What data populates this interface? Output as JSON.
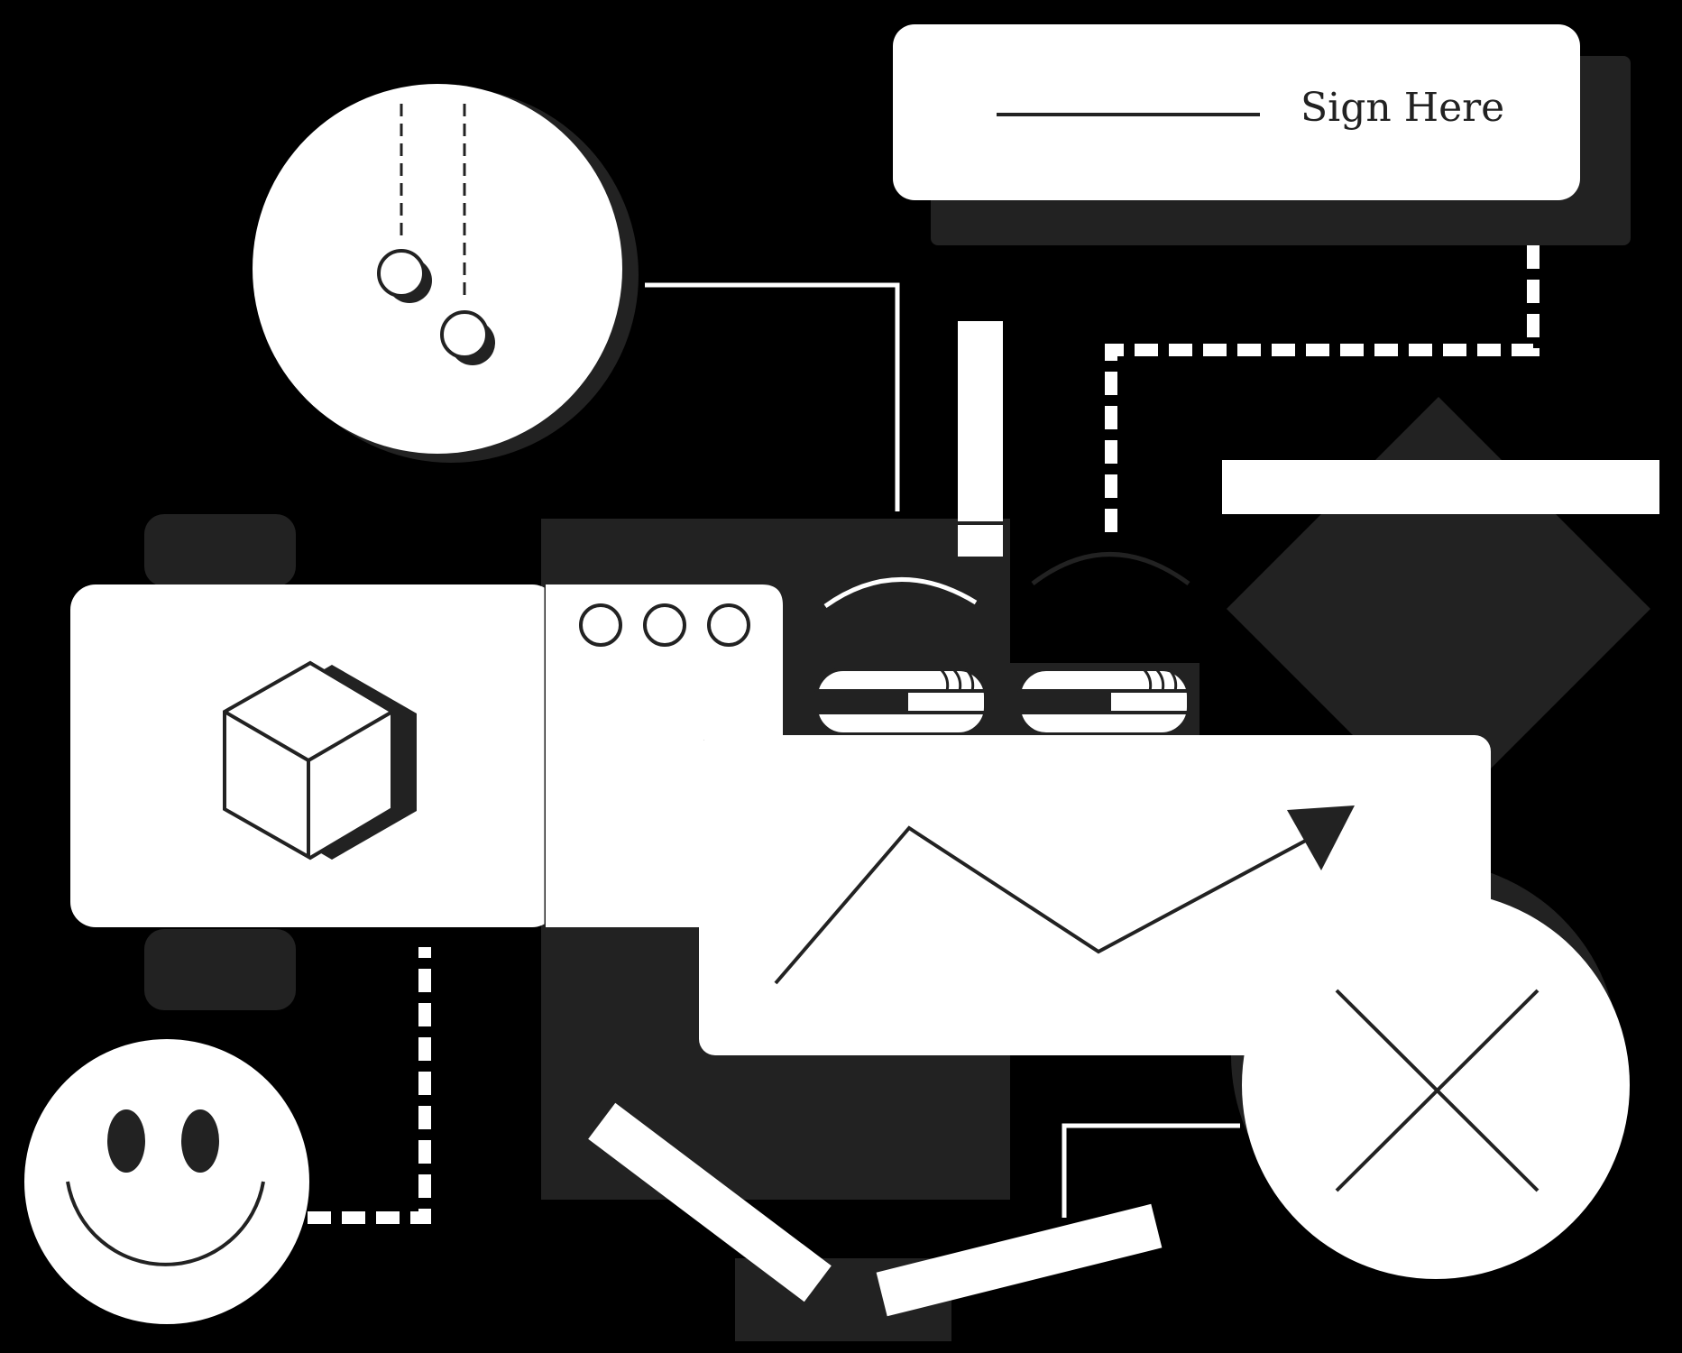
{
  "signature_card": {
    "label": "Sign Here"
  },
  "icons": {
    "cube": "cube-icon",
    "window_dots": "three-dots-icon",
    "line_chart": "trend-up-arrow-icon",
    "close": "close-x-icon",
    "smiley": "smiley-face-icon",
    "hanging_balls": "pendulum-icon",
    "toggles": "toggle-switch-icon"
  },
  "colors": {
    "background": "#000000",
    "shadow": "#222222",
    "surface": "#ffffff",
    "stroke": "#222222"
  }
}
